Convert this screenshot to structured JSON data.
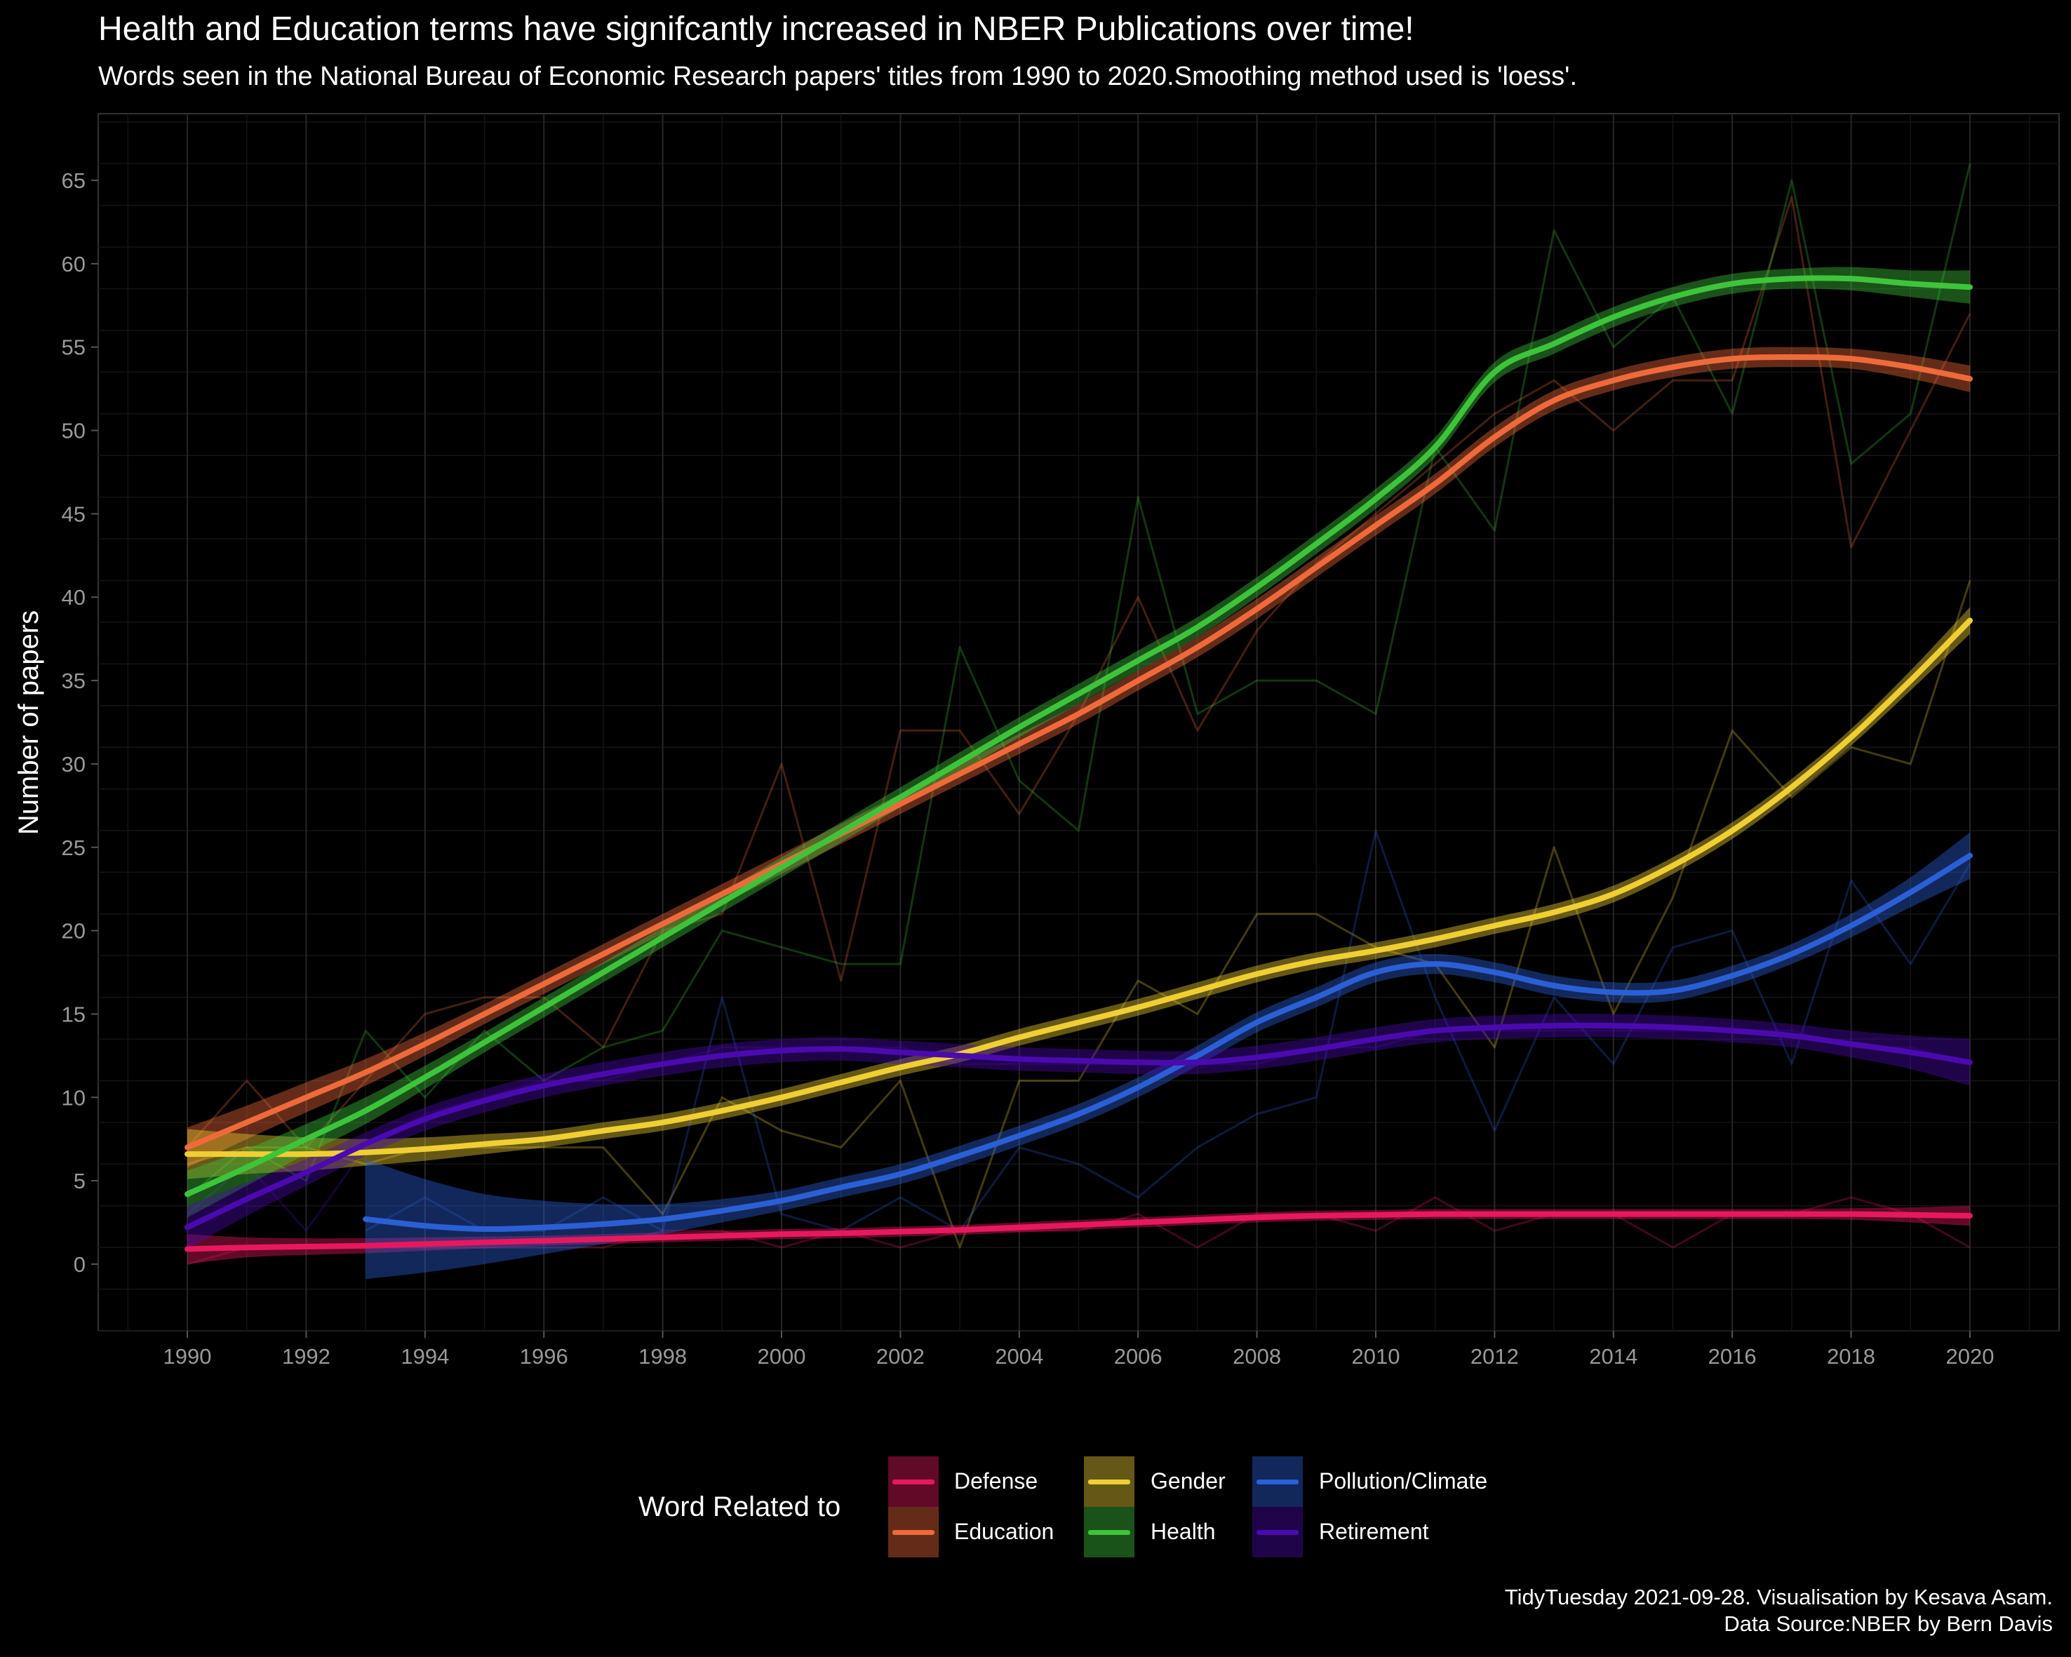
{
  "title": "Health and Education terms have signifcantly increased in NBER Publications over time!",
  "subtitle": "Words seen in the National Bureau of Economic Research papers' titles from 1990 to 2020.Smoothing method used is 'loess'.",
  "caption": {
    "line1": "TidyTuesday 2021-09-28. Visualisation by Kesava Asam.",
    "line2": "Data Source:NBER by Bern Davis"
  },
  "legend": {
    "title": "Word Related to",
    "position": "bottom",
    "items": [
      {
        "label": "Defense",
        "color": "#e8185e"
      },
      {
        "label": "Education",
        "color": "#ef6a3a"
      },
      {
        "label": "Gender",
        "color": "#f0cf33"
      },
      {
        "label": "Health",
        "color": "#3ec43b"
      },
      {
        "label": "Pollution/Climate",
        "color": "#2b5fd6"
      },
      {
        "label": "Retirement",
        "color": "#4a0ab0"
      }
    ]
  },
  "chart_data": {
    "type": "line",
    "title": "Health and Education terms have signifcantly increased in NBER Publications over time!",
    "subtitle": "Words seen in the National Bureau of Economic Research papers' titles from 1990 to 2020.Smoothing method used is 'loess'.",
    "xlabel": "",
    "ylabel": "Number of papers",
    "xlim": [
      1988.5,
      2021.5
    ],
    "ylim": [
      -4,
      69
    ],
    "x_ticks": [
      1990,
      1992,
      1994,
      1996,
      1998,
      2000,
      2002,
      2004,
      2006,
      2008,
      2010,
      2012,
      2014,
      2016,
      2018,
      2020
    ],
    "y_ticks": [
      0,
      5,
      10,
      15,
      20,
      25,
      30,
      35,
      40,
      45,
      50,
      55,
      60,
      65
    ],
    "grid": true,
    "smoothing": "loess",
    "series": [
      {
        "name": "Defense",
        "color": "#e8185e",
        "x": [
          1990,
          1991,
          1992,
          1993,
          1994,
          1995,
          1996,
          1997,
          1998,
          1999,
          2000,
          2001,
          2002,
          2003,
          2004,
          2005,
          2006,
          2007,
          2008,
          2009,
          2010,
          2011,
          2012,
          2013,
          2014,
          2015,
          2016,
          2017,
          2018,
          2019,
          2020
        ],
        "raw": [
          0,
          1,
          1,
          1,
          1,
          1,
          1,
          1,
          2,
          2,
          1,
          2,
          1,
          2,
          2,
          2,
          3,
          1,
          3,
          3,
          2,
          4,
          2,
          3,
          3,
          1,
          3,
          3,
          4,
          3,
          1
        ],
        "smooth": [
          0.9,
          1.0,
          1.05,
          1.1,
          1.2,
          1.3,
          1.4,
          1.5,
          1.6,
          1.7,
          1.8,
          1.85,
          1.95,
          2.05,
          2.2,
          2.35,
          2.5,
          2.65,
          2.8,
          2.9,
          2.95,
          3.0,
          3.0,
          3.0,
          3.0,
          3.0,
          3.0,
          3.0,
          3.0,
          2.95,
          2.9
        ],
        "band": [
          0.9,
          0.6,
          0.5,
          0.45,
          0.4,
          0.35,
          0.3,
          0.3,
          0.3,
          0.3,
          0.3,
          0.3,
          0.3,
          0.3,
          0.3,
          0.3,
          0.3,
          0.3,
          0.3,
          0.3,
          0.3,
          0.3,
          0.3,
          0.3,
          0.3,
          0.3,
          0.3,
          0.3,
          0.35,
          0.45,
          0.6
        ]
      },
      {
        "name": "Education",
        "color": "#ef6a3a",
        "x": [
          1990,
          1991,
          1992,
          1993,
          1994,
          1995,
          1996,
          1997,
          1998,
          1999,
          2000,
          2001,
          2002,
          2003,
          2004,
          2005,
          2006,
          2007,
          2008,
          2009,
          2010,
          2011,
          2012,
          2013,
          2014,
          2015,
          2016,
          2017,
          2018,
          2019,
          2020
        ],
        "raw": [
          7,
          11,
          7,
          11,
          15,
          16,
          16,
          13,
          20,
          21,
          30,
          17,
          32,
          32,
          27,
          33,
          40,
          32,
          38,
          42,
          45,
          48,
          51,
          53,
          50,
          53,
          53,
          64,
          43,
          50,
          57
        ],
        "smooth": [
          7.0,
          8.5,
          10.0,
          11.5,
          13.2,
          15.0,
          16.8,
          18.6,
          20.4,
          22.2,
          24.0,
          25.8,
          27.6,
          29.4,
          31.2,
          33.0,
          35.0,
          37.0,
          39.3,
          41.8,
          44.3,
          46.8,
          49.6,
          51.8,
          53.0,
          53.8,
          54.3,
          54.4,
          54.3,
          53.8,
          53.1
        ],
        "band": [
          1.2,
          1.0,
          0.9,
          0.8,
          0.7,
          0.6,
          0.6,
          0.6,
          0.6,
          0.6,
          0.6,
          0.6,
          0.6,
          0.6,
          0.6,
          0.6,
          0.6,
          0.6,
          0.6,
          0.6,
          0.6,
          0.6,
          0.6,
          0.6,
          0.6,
          0.6,
          0.6,
          0.6,
          0.6,
          0.7,
          0.8
        ]
      },
      {
        "name": "Gender",
        "color": "#f0cf33",
        "x": [
          1990,
          1991,
          1992,
          1993,
          1994,
          1995,
          1996,
          1997,
          1998,
          1999,
          2000,
          2001,
          2002,
          2003,
          2004,
          2005,
          2006,
          2007,
          2008,
          2009,
          2010,
          2011,
          2012,
          2013,
          2014,
          2015,
          2016,
          2017,
          2018,
          2019,
          2020
        ],
        "raw": [
          6,
          7,
          7,
          6,
          7,
          7,
          7,
          7,
          3,
          10,
          8,
          7,
          11,
          1,
          11,
          11,
          17,
          15,
          21,
          21,
          19,
          18,
          13,
          25,
          15,
          22,
          32,
          28,
          31,
          30,
          41
        ],
        "smooth": [
          6.6,
          6.6,
          6.6,
          6.7,
          6.9,
          7.2,
          7.5,
          8.0,
          8.5,
          9.2,
          10.0,
          10.9,
          11.8,
          12.6,
          13.6,
          14.5,
          15.4,
          16.4,
          17.4,
          18.2,
          18.8,
          19.5,
          20.3,
          21.1,
          22.2,
          23.9,
          26.0,
          28.6,
          31.6,
          35.0,
          38.6
        ],
        "band": [
          1.5,
          1.2,
          1.0,
          0.8,
          0.7,
          0.6,
          0.5,
          0.5,
          0.5,
          0.5,
          0.5,
          0.5,
          0.5,
          0.5,
          0.5,
          0.5,
          0.5,
          0.5,
          0.5,
          0.5,
          0.5,
          0.5,
          0.5,
          0.5,
          0.5,
          0.5,
          0.5,
          0.5,
          0.5,
          0.6,
          0.8
        ]
      },
      {
        "name": "Health",
        "color": "#3ec43b",
        "x": [
          1990,
          1991,
          1992,
          1993,
          1994,
          1995,
          1996,
          1997,
          1998,
          1999,
          2000,
          2001,
          2002,
          2003,
          2004,
          2005,
          2006,
          2007,
          2008,
          2009,
          2010,
          2011,
          2012,
          2013,
          2014,
          2015,
          2016,
          2017,
          2018,
          2019,
          2020
        ],
        "raw": [
          4,
          7,
          5,
          14,
          10,
          14,
          11,
          13,
          14,
          20,
          19,
          18,
          18,
          37,
          29,
          26,
          46,
          33,
          35,
          35,
          33,
          49,
          44,
          62,
          55,
          58,
          51,
          65,
          48,
          51,
          66
        ],
        "smooth": [
          4.2,
          5.8,
          7.5,
          9.2,
          11.2,
          13.3,
          15.4,
          17.5,
          19.6,
          21.7,
          23.8,
          25.9,
          28.0,
          30.1,
          32.2,
          34.2,
          36.2,
          38.2,
          40.6,
          43.2,
          45.9,
          49.0,
          53.5,
          55.2,
          56.8,
          58.0,
          58.8,
          59.1,
          59.1,
          58.8,
          58.6
        ],
        "band": [
          1.4,
          1.1,
          0.9,
          0.8,
          0.7,
          0.6,
          0.6,
          0.6,
          0.6,
          0.6,
          0.6,
          0.6,
          0.6,
          0.6,
          0.6,
          0.6,
          0.6,
          0.6,
          0.6,
          0.6,
          0.6,
          0.6,
          0.6,
          0.6,
          0.6,
          0.6,
          0.6,
          0.6,
          0.7,
          0.8,
          1.0
        ]
      },
      {
        "name": "Pollution/Climate",
        "color": "#2b5fd6",
        "x": [
          1993,
          1994,
          1995,
          1996,
          1997,
          1998,
          1999,
          2000,
          2001,
          2002,
          2003,
          2004,
          2005,
          2006,
          2007,
          2008,
          2009,
          2010,
          2011,
          2012,
          2013,
          2014,
          2015,
          2016,
          2017,
          2018,
          2019,
          2020
        ],
        "raw": [
          2,
          4,
          2,
          2,
          4,
          2,
          16,
          3,
          2,
          4,
          2,
          7,
          6,
          4,
          7,
          9,
          10,
          26,
          16,
          8,
          16,
          12,
          19,
          20,
          12,
          23,
          18,
          24
        ],
        "smooth": [
          2.7,
          2.3,
          2.1,
          2.2,
          2.4,
          2.7,
          3.2,
          3.8,
          4.6,
          5.4,
          6.5,
          7.7,
          9.0,
          10.6,
          12.5,
          14.5,
          16.0,
          17.5,
          18.0,
          17.5,
          16.7,
          16.3,
          16.4,
          17.3,
          18.6,
          20.3,
          22.3,
          24.5
        ],
        "band": [
          3.6,
          2.8,
          2.1,
          1.6,
          1.2,
          0.9,
          0.7,
          0.6,
          0.6,
          0.6,
          0.6,
          0.6,
          0.6,
          0.6,
          0.6,
          0.6,
          0.6,
          0.6,
          0.6,
          0.6,
          0.6,
          0.6,
          0.6,
          0.6,
          0.6,
          0.7,
          0.9,
          1.4
        ]
      },
      {
        "name": "Retirement",
        "color": "#4a0ab0",
        "x": [
          1990,
          1991,
          1992,
          1993,
          1994,
          1995,
          1996,
          1997,
          1998,
          1999,
          2000,
          2001,
          2002,
          2003,
          2004,
          2005,
          2006,
          2007,
          2008,
          2009,
          2010,
          2011,
          2012,
          2013,
          2014,
          2015,
          2016,
          2017,
          2018,
          2019,
          2020
        ],
        "raw": [
          3,
          6,
          2,
          7,
          9,
          10,
          11,
          11,
          12,
          13,
          13,
          13,
          13,
          12,
          12,
          12,
          12,
          12,
          12,
          13,
          13,
          14,
          14,
          14,
          14,
          14,
          14,
          14,
          13,
          13,
          12
        ],
        "smooth": [
          2.2,
          3.9,
          5.5,
          7.2,
          8.7,
          9.8,
          10.7,
          11.4,
          12.0,
          12.5,
          12.8,
          12.9,
          12.7,
          12.5,
          12.3,
          12.2,
          12.1,
          12.1,
          12.4,
          12.9,
          13.5,
          14.0,
          14.2,
          14.3,
          14.3,
          14.2,
          14.0,
          13.7,
          13.2,
          12.7,
          12.1
        ],
        "band": [
          1.3,
          1.0,
          0.8,
          0.7,
          0.7,
          0.7,
          0.7,
          0.7,
          0.7,
          0.7,
          0.7,
          0.7,
          0.7,
          0.7,
          0.7,
          0.7,
          0.7,
          0.7,
          0.7,
          0.7,
          0.7,
          0.7,
          0.7,
          0.7,
          0.7,
          0.7,
          0.7,
          0.7,
          0.8,
          1.0,
          1.4
        ]
      }
    ]
  }
}
